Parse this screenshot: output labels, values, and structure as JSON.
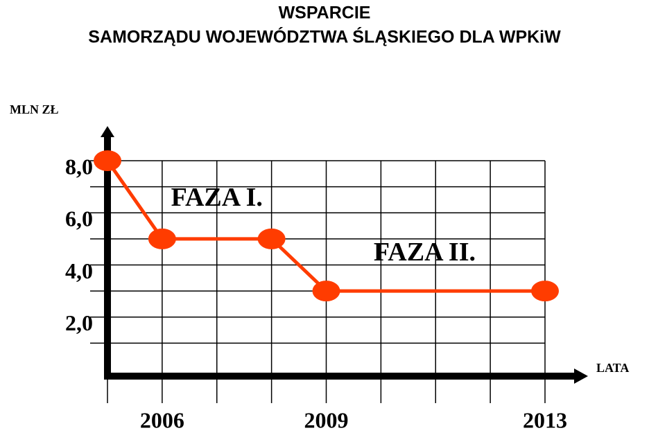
{
  "chart_data": {
    "type": "line",
    "title": [
      "WSPARCIE",
      "SAMORZĄDU WOJEWÓDZTWA ŚLĄSKIEGO DLA WPKiW"
    ],
    "y_label": "MLN ZŁ",
    "x_label": "LATA",
    "x": [
      2005,
      2006,
      2008,
      2009,
      2013
    ],
    "series": [
      {
        "color": "#ff3c00",
        "values": [
          8,
          5,
          5,
          3,
          3
        ]
      }
    ],
    "xlim": [
      2005,
      2013
    ],
    "ylim": [
      0,
      8
    ],
    "xticks": [
      2006,
      2009,
      2013
    ],
    "x_minor_ticks": [
      2005,
      2006,
      2007,
      2008,
      2009,
      2010,
      2011,
      2012,
      2013
    ],
    "yticks": [
      {
        "value": 2,
        "label": "2,0"
      },
      {
        "value": 4,
        "label": "4,0"
      },
      {
        "value": 6,
        "label": "6,0"
      },
      {
        "value": 8,
        "label": "8,0"
      }
    ],
    "y_minor_ticks": [
      1,
      2,
      3,
      4,
      5,
      6,
      7,
      8
    ],
    "grid": true,
    "annotations": [
      {
        "text": "FAZA I.",
        "x": 2007,
        "y": 6.5
      },
      {
        "text": "FAZA II.",
        "x": 2010.8,
        "y": 4.4
      }
    ]
  }
}
